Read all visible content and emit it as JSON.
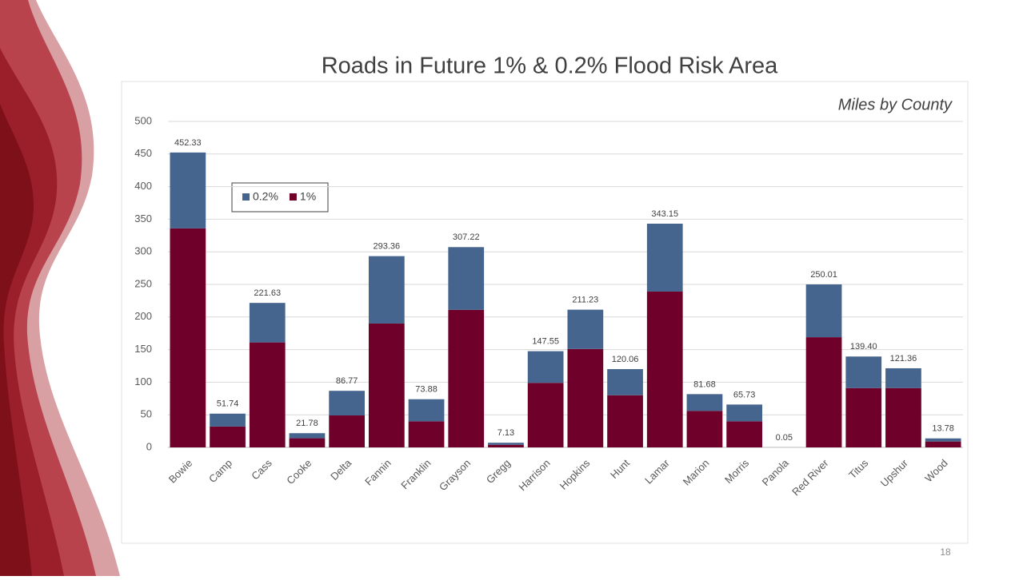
{
  "chart_data": {
    "type": "stacked-bar",
    "title": "Roads in Future 1% & 0.2% Flood Risk Area",
    "subtitle": "Miles by County",
    "page_number": "18",
    "categories": [
      "Bowie",
      "Camp",
      "Cass",
      "Cooke",
      "Delta",
      "Fannin",
      "Franklin",
      "Grayson",
      "Gregg",
      "Harrison",
      "Hopkins",
      "Hunt",
      "Lamar",
      "Marion",
      "Morris",
      "Panola",
      "Red River",
      "Titus",
      "Upshur",
      "Wood"
    ],
    "series": [
      {
        "name": "1%",
        "color": "#6e0029",
        "values": [
          336,
          32,
          161,
          14,
          49,
          190,
          40,
          211,
          4,
          99,
          151,
          80,
          239,
          56,
          40,
          0.03,
          169,
          91,
          91,
          9
        ]
      },
      {
        "name": "0.2%",
        "color": "#46658e",
        "values": [
          116.33,
          19.74,
          60.63,
          7.78,
          37.77,
          103.36,
          33.88,
          96.22,
          3.13,
          48.55,
          60.23,
          40.06,
          104.15,
          25.68,
          25.73,
          0.02,
          81.01,
          48.4,
          30.36,
          4.78
        ]
      }
    ],
    "totals": [
      452.33,
      51.74,
      221.63,
      21.78,
      86.77,
      293.36,
      73.88,
      307.22,
      7.13,
      147.55,
      211.23,
      120.06,
      343.15,
      81.68,
      65.73,
      0.05,
      250.01,
      139.4,
      121.36,
      13.78
    ],
    "total_labels": [
      "452.33",
      "51.74",
      "221.63",
      "21.78",
      "86.77",
      "293.36",
      "73.88",
      "307.22",
      "7.13",
      "147.55",
      "211.23",
      "120.06",
      "343.15",
      "81.68",
      "65.73",
      "0.05",
      "250.01",
      "139.40",
      "121.36",
      "13.78"
    ],
    "ylim": [
      0,
      500
    ],
    "yticks": [
      0,
      50,
      100,
      150,
      200,
      250,
      300,
      350,
      400,
      450,
      500
    ],
    "grid": true,
    "legend_order": [
      1,
      0
    ]
  }
}
